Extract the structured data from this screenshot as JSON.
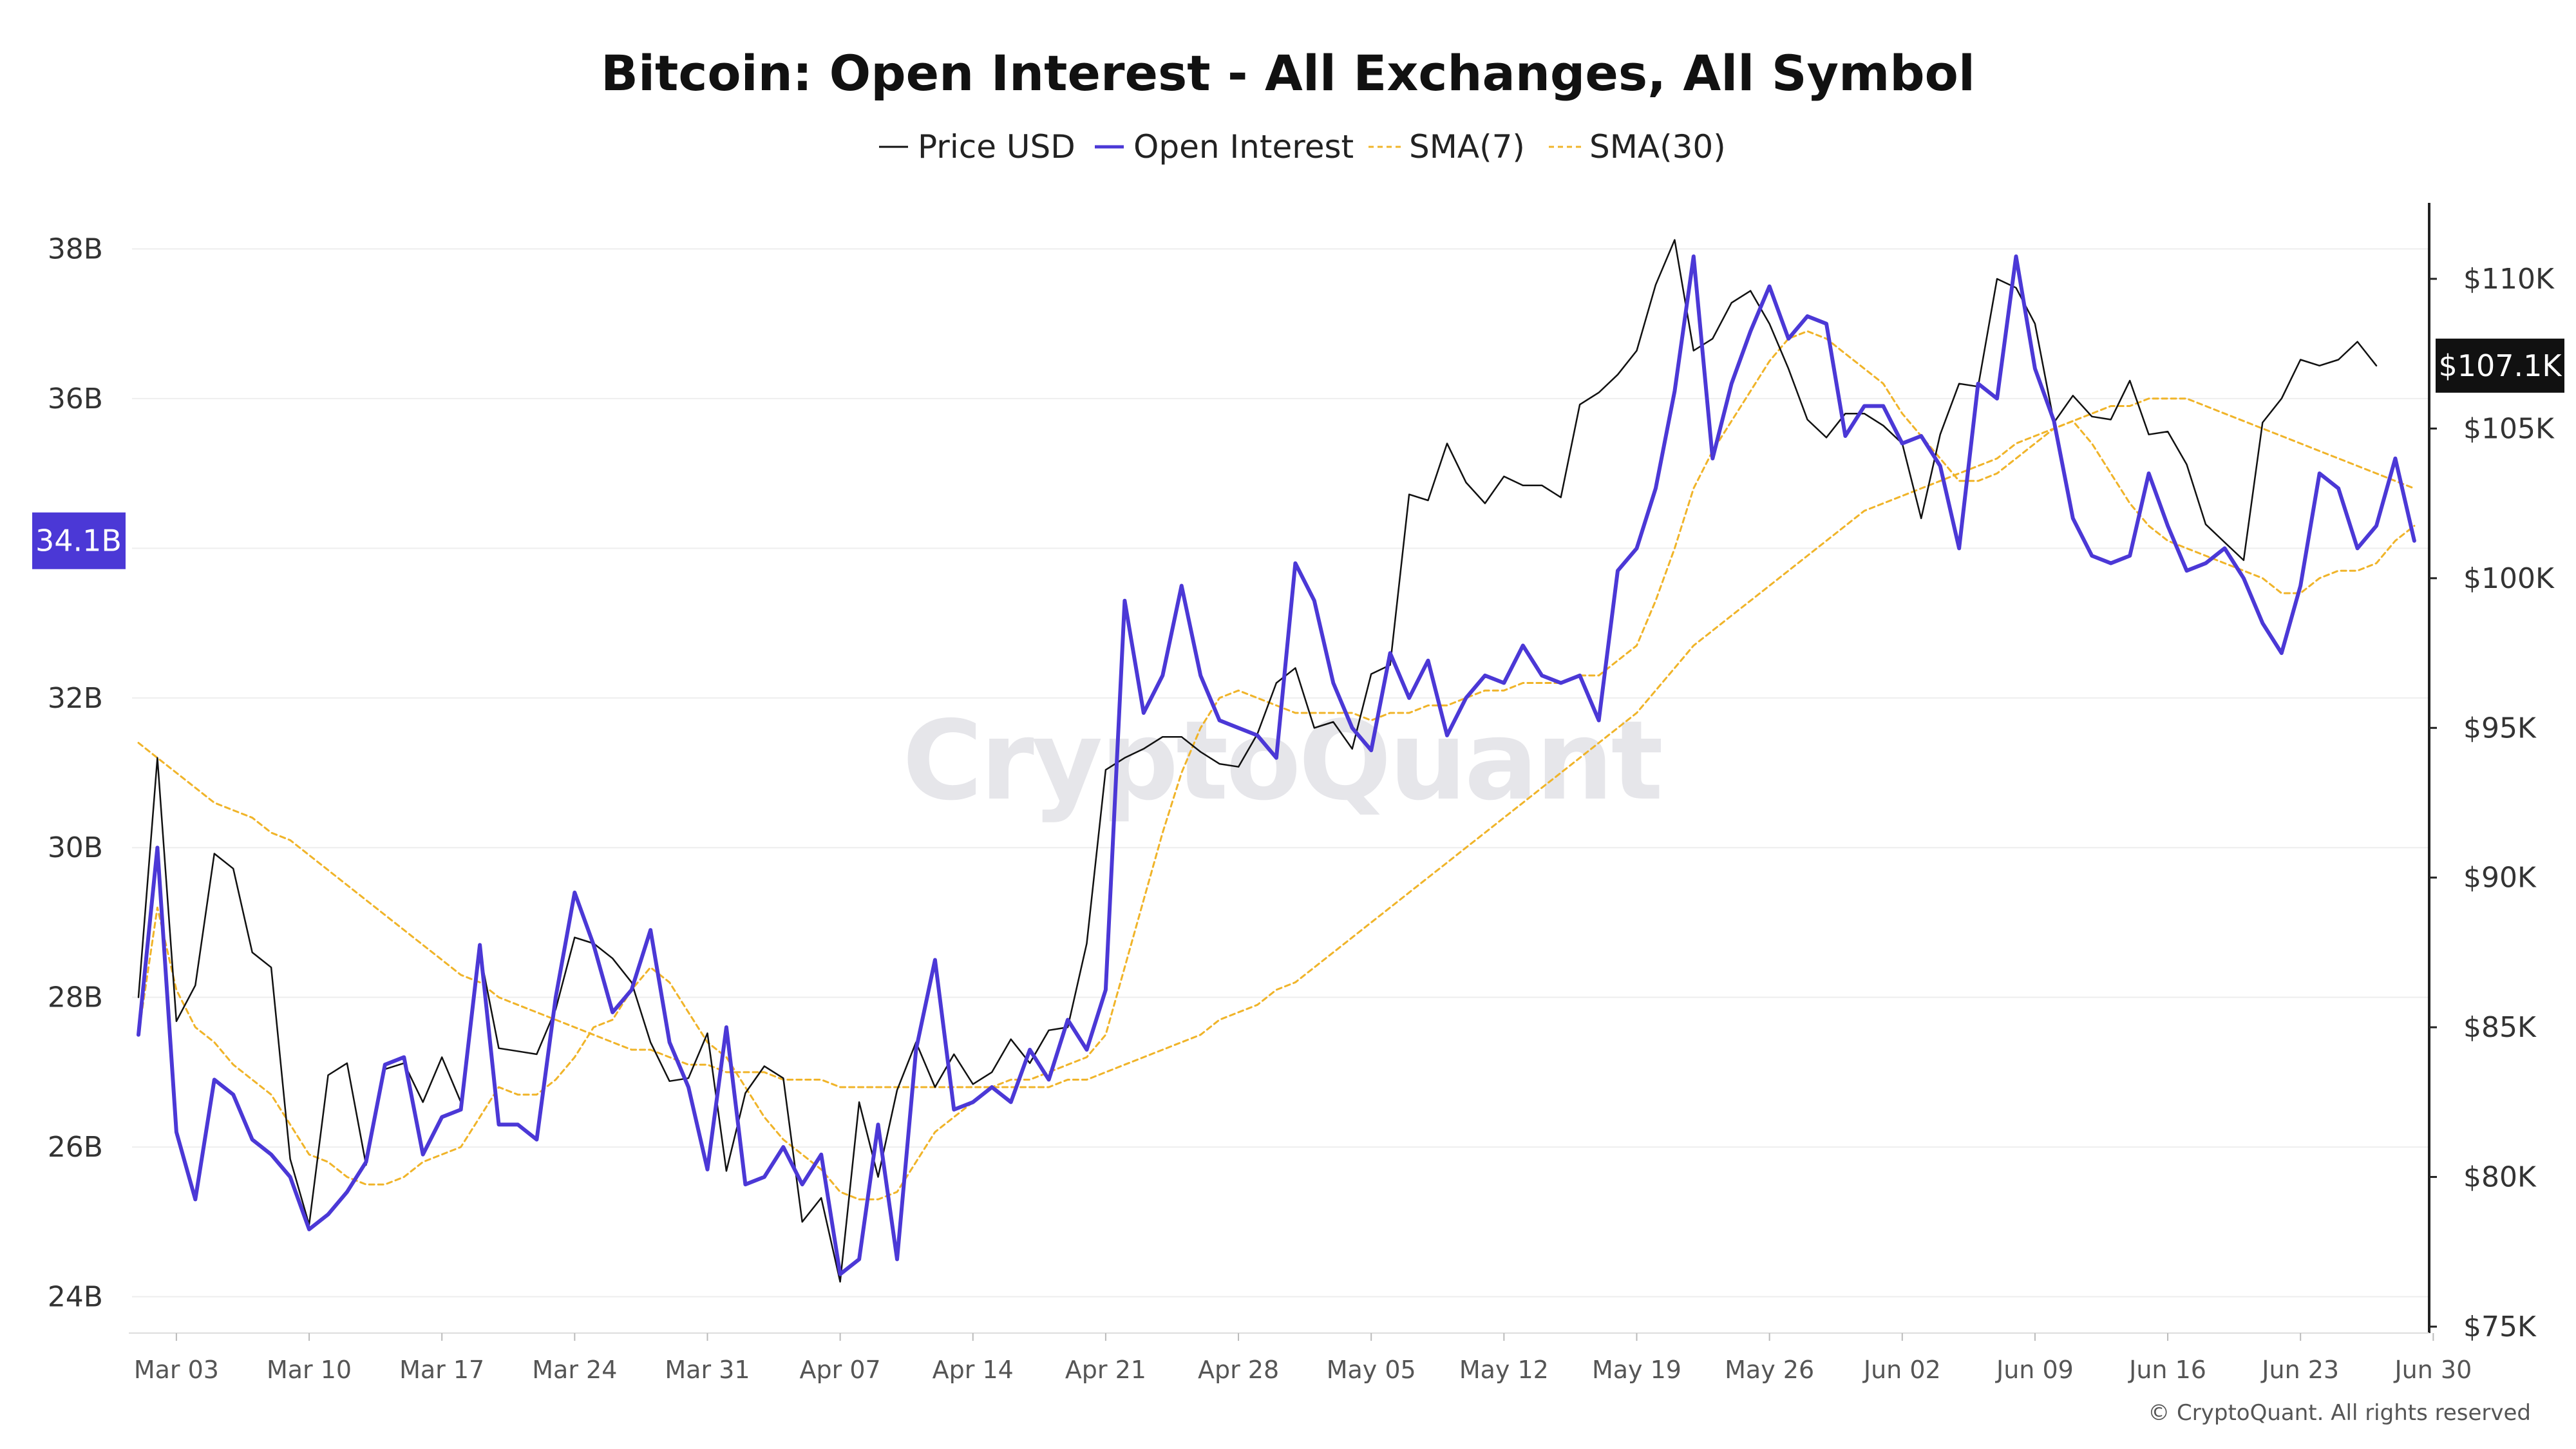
{
  "chart_data": {
    "type": "line",
    "title": "Bitcoin: Open Interest - All Exchanges, All Symbol",
    "legend": [
      {
        "name": "Price USD",
        "color": "#111111",
        "style": "solid"
      },
      {
        "name": "Open Interest",
        "color": "#4b38d6",
        "style": "solid"
      },
      {
        "name": "SMA(7)",
        "color": "#f0b429",
        "style": "dashed"
      },
      {
        "name": "SMA(30)",
        "color": "#f0b429",
        "style": "dashed"
      }
    ],
    "legend_position": "top-center",
    "x_tick_labels": [
      "Mar 03",
      "Mar 10",
      "Mar 17",
      "Mar 24",
      "Mar 31",
      "Apr 07",
      "Apr 14",
      "Apr 21",
      "Apr 28",
      "May 05",
      "May 12",
      "May 19",
      "May 26",
      "Jun 02",
      "Jun 09",
      "Jun 16",
      "Jun 23",
      "Jun 30"
    ],
    "left_axis": {
      "ticks": [
        "24B",
        "26B",
        "28B",
        "30B",
        "32B",
        "34B",
        "36B",
        "38B"
      ],
      "ylim": [
        23.6,
        38.4
      ],
      "unit": "B"
    },
    "right_axis": {
      "ticks": [
        "$75K",
        "$80K",
        "$85K",
        "$90K",
        "$95K",
        "$100K",
        "$105K",
        "$110K"
      ],
      "ylim": [
        75,
        112
      ],
      "unit": "K"
    },
    "current_values": {
      "open_interest_flag": "34.1B",
      "price_flag": "$107.1K"
    },
    "series": [
      {
        "name": "Price USD",
        "axis": "right",
        "values": [
          86,
          94,
          85.2,
          86.4,
          90.8,
          90.3,
          87.5,
          87,
          80.6,
          78.4,
          83.4,
          83.8,
          80.4,
          83.6,
          83.8,
          82.5,
          84,
          82.5,
          87.5,
          84.3,
          84.2,
          84.1,
          85.6,
          88,
          87.8,
          87.3,
          86.5,
          84.5,
          83.2,
          83.3,
          84.8,
          80.2,
          82.8,
          83.7,
          83.3,
          78.5,
          79.3,
          76.5,
          82.5,
          80,
          82.9,
          84.5,
          83,
          84.1,
          83.1,
          83.5,
          84.6,
          83.8,
          84.9,
          85,
          87.8,
          93.6,
          94,
          94.3,
          94.7,
          94.7,
          94.2,
          93.8,
          93.7,
          94.8,
          96.5,
          97,
          95,
          95.2,
          94.3,
          96.8,
          97.1,
          102.8,
          102.6,
          104.5,
          103.2,
          102.5,
          103.4,
          103.1,
          103.1,
          102.7,
          105.8,
          106.2,
          106.8,
          107.6,
          109.8,
          111.3,
          107.6,
          108,
          109.2,
          109.6,
          108.5,
          107,
          105.3,
          104.7,
          105.5,
          105.5,
          105.1,
          104.5,
          102,
          104.8,
          106.5,
          106.4,
          110,
          109.7,
          108.5,
          105.2,
          106.1,
          105.4,
          105.3,
          106.6,
          104.8,
          104.9,
          103.8,
          101.8,
          101.2,
          100.6,
          105.2,
          106,
          107.3,
          107.1,
          107.3,
          107.9,
          107.1
        ],
        "last_value": 107.1
      },
      {
        "name": "Open Interest",
        "axis": "left",
        "values": [
          27.5,
          30,
          26.2,
          25.3,
          26.9,
          26.7,
          26.1,
          25.9,
          25.6,
          24.9,
          25.1,
          25.4,
          25.8,
          27.1,
          27.2,
          25.9,
          26.4,
          26.5,
          28.7,
          26.3,
          26.3,
          26.1,
          28,
          29.4,
          28.7,
          27.8,
          28.1,
          28.9,
          27.4,
          26.8,
          25.7,
          27.6,
          25.5,
          25.6,
          26,
          25.5,
          25.9,
          24.3,
          24.5,
          26.3,
          24.5,
          27.3,
          28.5,
          26.5,
          26.6,
          26.8,
          26.6,
          27.3,
          26.9,
          27.7,
          27.3,
          28.1,
          33.3,
          31.8,
          32.3,
          33.5,
          32.3,
          31.7,
          31.6,
          31.5,
          31.2,
          33.8,
          33.3,
          32.2,
          31.6,
          31.3,
          32.6,
          32,
          32.5,
          31.5,
          32,
          32.3,
          32.2,
          32.7,
          32.3,
          32.2,
          32.3,
          31.7,
          33.7,
          34,
          34.8,
          36.1,
          37.9,
          35.2,
          36.2,
          36.9,
          37.5,
          36.8,
          37.1,
          37,
          35.5,
          35.9,
          35.9,
          35.4,
          35.5,
          35.1,
          34,
          36.2,
          36,
          37.9,
          36.4,
          35.7,
          34.4,
          33.9,
          33.8,
          33.9,
          35,
          34.3,
          33.7,
          33.8,
          34,
          33.6,
          33,
          32.6,
          33.5,
          35,
          34.8,
          34,
          34.3,
          35.2,
          34.1
        ],
        "last_value": 34.1
      },
      {
        "name": "SMA(7)",
        "axis": "left",
        "values": [
          27.5,
          29.2,
          28.1,
          27.6,
          27.4,
          27.1,
          26.9,
          26.7,
          26.3,
          25.9,
          25.8,
          25.6,
          25.5,
          25.5,
          25.6,
          25.8,
          25.9,
          26,
          26.4,
          26.8,
          26.7,
          26.7,
          26.9,
          27.2,
          27.6,
          27.7,
          28.1,
          28.4,
          28.2,
          27.8,
          27.4,
          27.2,
          26.8,
          26.4,
          26.1,
          25.9,
          25.7,
          25.4,
          25.3,
          25.3,
          25.4,
          25.8,
          26.2,
          26.4,
          26.6,
          26.8,
          26.9,
          26.9,
          27,
          27.1,
          27.2,
          27.5,
          28.4,
          29.3,
          30.2,
          31,
          31.6,
          32,
          32.1,
          32,
          31.9,
          31.8,
          31.8,
          31.8,
          31.8,
          31.7,
          31.8,
          31.8,
          31.9,
          31.9,
          32,
          32.1,
          32.1,
          32.2,
          32.2,
          32.2,
          32.3,
          32.3,
          32.5,
          32.7,
          33.3,
          34,
          34.8,
          35.3,
          35.7,
          36.1,
          36.5,
          36.8,
          36.9,
          36.8,
          36.6,
          36.4,
          36.2,
          35.8,
          35.5,
          35.2,
          34.9,
          34.9,
          35,
          35.2,
          35.4,
          35.6,
          35.7,
          35.4,
          35,
          34.6,
          34.3,
          34.1,
          34,
          33.9,
          33.8,
          33.7,
          33.6,
          33.4,
          33.4,
          33.6,
          33.7,
          33.7,
          33.8,
          34.1,
          34.3
        ],
        "last_value": 34.3
      },
      {
        "name": "SMA(30)",
        "axis": "left",
        "values": [
          31.4,
          31.2,
          31,
          30.8,
          30.6,
          30.5,
          30.4,
          30.2,
          30.1,
          29.9,
          29.7,
          29.5,
          29.3,
          29.1,
          28.9,
          28.7,
          28.5,
          28.3,
          28.2,
          28,
          27.9,
          27.8,
          27.7,
          27.6,
          27.5,
          27.4,
          27.3,
          27.3,
          27.2,
          27.1,
          27.1,
          27,
          27,
          27,
          26.9,
          26.9,
          26.9,
          26.8,
          26.8,
          26.8,
          26.8,
          26.8,
          26.8,
          26.8,
          26.8,
          26.8,
          26.8,
          26.8,
          26.8,
          26.9,
          26.9,
          27,
          27.1,
          27.2,
          27.3,
          27.4,
          27.5,
          27.7,
          27.8,
          27.9,
          28.1,
          28.2,
          28.4,
          28.6,
          28.8,
          29,
          29.2,
          29.4,
          29.6,
          29.8,
          30,
          30.2,
          30.4,
          30.6,
          30.8,
          31,
          31.2,
          31.4,
          31.6,
          31.8,
          32.1,
          32.4,
          32.7,
          32.9,
          33.1,
          33.3,
          33.5,
          33.7,
          33.9,
          34.1,
          34.3,
          34.5,
          34.6,
          34.7,
          34.8,
          34.9,
          35,
          35.1,
          35.2,
          35.4,
          35.5,
          35.6,
          35.7,
          35.8,
          35.9,
          35.9,
          36,
          36,
          36,
          35.9,
          35.8,
          35.7,
          35.6,
          35.5,
          35.4,
          35.3,
          35.2,
          35.1,
          35,
          34.9,
          34.8
        ],
        "last_value": 34.8
      }
    ]
  },
  "watermark": "CryptoQuant",
  "copyright": "© CryptoQuant. All rights reserved"
}
